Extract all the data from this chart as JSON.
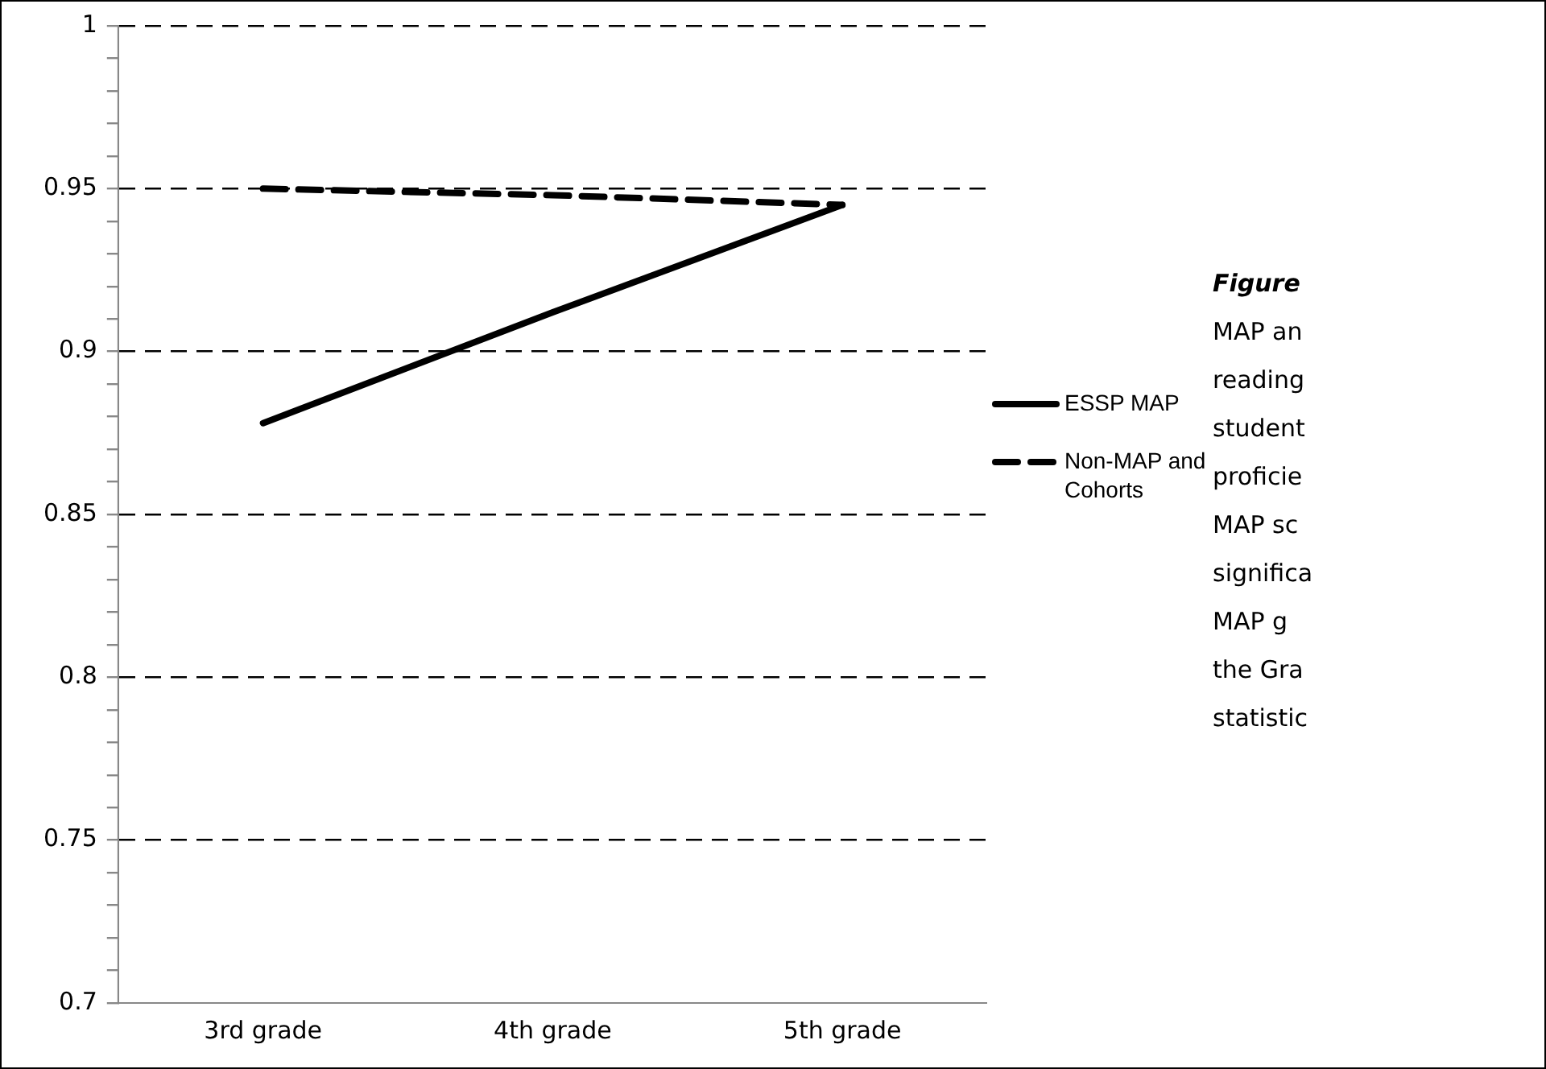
{
  "chart_data": {
    "type": "line",
    "categories": [
      "3rd grade",
      "4th grade",
      "5th grade"
    ],
    "series": [
      {
        "name": "ESSP MAP",
        "color": "#000000",
        "values": [
          0.878,
          0.912,
          0.945
        ],
        "line_style": "solid"
      },
      {
        "name": "Non-MAP and Cohorts",
        "color": "#000000",
        "values": [
          0.95,
          0.948,
          0.945
        ],
        "line_style": "dashed"
      }
    ],
    "ylim": [
      0.7,
      1
    ],
    "yticks": [
      0.7,
      {
        "value": 0.71,
        "label": null
      },
      {
        "value": 0.72,
        "label": null
      },
      {
        "value": 0.73,
        "label": null
      },
      {
        "value": 0.74,
        "label": null
      },
      0.75,
      {
        "value": 0.76,
        "label": null
      },
      {
        "value": 0.77,
        "label": null
      },
      {
        "value": 0.78,
        "label": null
      },
      {
        "value": 0.79,
        "label": null
      },
      0.8,
      {
        "value": 0.81,
        "label": null
      },
      {
        "value": 0.82,
        "label": null
      },
      {
        "value": 0.83,
        "label": null
      },
      {
        "value": 0.84,
        "label": null
      },
      0.85,
      {
        "value": 0.86,
        "label": null
      },
      {
        "value": 0.87,
        "label": null
      },
      {
        "value": 0.88,
        "label": null
      },
      {
        "value": 0.89,
        "label": null
      },
      0.9,
      {
        "value": 0.91,
        "label": null
      },
      {
        "value": 0.92,
        "label": null
      },
      {
        "value": 0.93,
        "label": null
      },
      {
        "value": 0.94,
        "label": null
      },
      0.95,
      {
        "value": 0.96,
        "label": null
      },
      {
        "value": 0.97,
        "label": null
      },
      {
        "value": 0.98,
        "label": null
      },
      {
        "value": 0.99,
        "label": null
      },
      1
    ],
    "grid": "y",
    "legend": "right",
    "marker": "none",
    "annotations": [
      "Figure",
      "MAP an",
      "reading",
      "student",
      "proficie",
      "MAP sc",
      "significa",
      "MAP g",
      "the Gra",
      "statistic"
    ]
  }
}
